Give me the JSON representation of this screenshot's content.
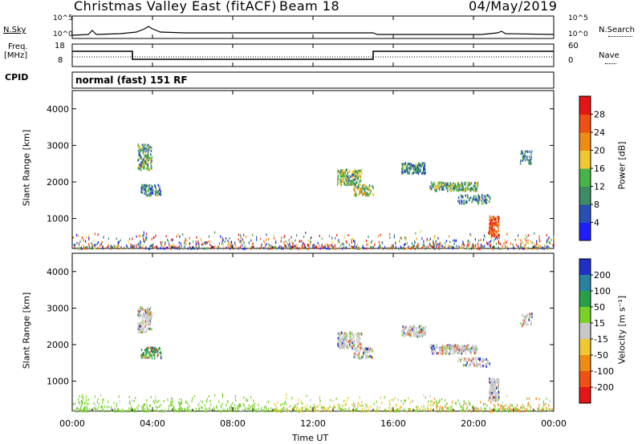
{
  "header": {
    "title": "Christmas Valley East (fitACF)",
    "beam": "Beam 18",
    "date": "04/May/2019"
  },
  "noise_panel": {
    "left_label": "N.Sky",
    "right_label": "N.Search",
    "tick_top": "10^5",
    "tick_bottom": "10^0"
  },
  "freq_panel": {
    "left_label_1": "Freq.",
    "left_label_2": "[MHz]",
    "right_label": "Nave",
    "left_tick_top": "18",
    "left_tick_bottom": "8",
    "right_tick_top": "60",
    "right_tick_bottom": "0"
  },
  "cpid": {
    "label": "CPID",
    "mode": "normal (fast) 151 RF"
  },
  "chart_data": [
    {
      "type": "heatmap",
      "name": "power",
      "ylabel": "Slant Range [km]",
      "ylim": [
        180,
        4500
      ],
      "yticks": [
        1000,
        2000,
        3000,
        4000
      ],
      "colorbar_label": "Power [dB]",
      "colorbar_ticks": [
        4,
        8,
        12,
        16,
        20,
        24,
        28
      ],
      "colorbar_range": [
        0,
        32
      ],
      "colors": [
        "#1e1eff",
        "#2850b4",
        "#3c8c64",
        "#46b446",
        "#f0c832",
        "#f08c14",
        "#f05014",
        "#e61414"
      ]
    },
    {
      "type": "heatmap",
      "name": "velocity",
      "ylabel": "Slant Range [km]",
      "ylim": [
        180,
        4500
      ],
      "yticks": [
        1000,
        2000,
        3000,
        4000
      ],
      "colorbar_label": "Velocity [m s⁻¹]",
      "colorbar_ticks": [
        "200",
        "100",
        "50",
        "15",
        "-15",
        "-50",
        "-100",
        "-200"
      ],
      "colors": [
        "#1e32c8",
        "#2882a0",
        "#28a046",
        "#78d228",
        "#c8c8c8",
        "#f0c832",
        "#f08c14",
        "#f05014",
        "#e61414"
      ]
    }
  ],
  "x_axis": {
    "label": "Time UT",
    "ticks": [
      "00:00",
      "04:00",
      "08:00",
      "12:00",
      "16:00",
      "20:00",
      "00:00"
    ]
  }
}
